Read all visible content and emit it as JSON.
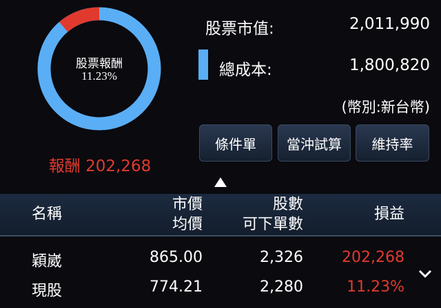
{
  "summary": {
    "donut_title": "股票報酬",
    "donut_percent": "11.23%",
    "return_percent_value": 11.23,
    "return_label": "報酬",
    "return_value": "202,268",
    "market_value_label": "股票市值:",
    "market_value": "2,011,990",
    "total_cost_label": "總成本:",
    "total_cost": "1,800,820",
    "currency_note": "(幣別:新台幣)"
  },
  "buttons": [
    "條件單",
    "當沖試算",
    "維持率"
  ],
  "table": {
    "headers": {
      "name": "名稱",
      "price_top": "市價",
      "price_bottom": "均價",
      "shares_top": "股數",
      "shares_bottom": "可下單數",
      "pnl": "損益"
    },
    "rows": [
      {
        "name_top": "穎崴",
        "name_bottom": "現股",
        "market_price": "865.00",
        "avg_price": "774.21",
        "shares": "2,326",
        "orderable": "2,280",
        "pnl": "202,268",
        "pnl_pct": "11.23%"
      }
    ]
  },
  "colors": {
    "cost": "#5aaef5",
    "return": "#e03a2e",
    "background": "#0a0a0f"
  }
}
